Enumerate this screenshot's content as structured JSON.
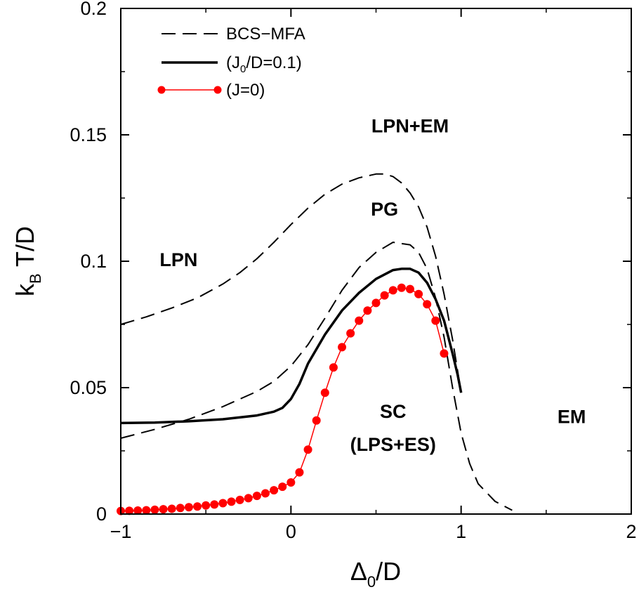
{
  "chart_data": {
    "type": "line",
    "title": "",
    "xlabel": "Δ0/D",
    "ylabel": "kB T/D",
    "xlim": [
      -1,
      2
    ],
    "ylim": [
      0,
      0.2
    ],
    "x_ticks": [
      -1,
      0,
      1,
      2
    ],
    "x_tick_labels": [
      "−1",
      "0",
      "1",
      "2"
    ],
    "y_ticks": [
      0,
      0.05,
      0.1,
      0.15,
      0.2
    ],
    "y_tick_labels": [
      "0",
      "0.05",
      "0.1",
      "0.15",
      "0.2"
    ],
    "grid": false,
    "legend_position": "top-left",
    "legend": [
      "BCS−MFA",
      "(J0/D=0.1)",
      "(J=0)"
    ],
    "series": [
      {
        "name": "BCS−MFA",
        "style": "dashed",
        "color": "#000000",
        "points": [
          [
            -1.0,
            0.075
          ],
          [
            -0.85,
            0.078
          ],
          [
            -0.7,
            0.0815
          ],
          [
            -0.55,
            0.0855
          ],
          [
            -0.4,
            0.091
          ],
          [
            -0.3,
            0.0955
          ],
          [
            -0.2,
            0.101
          ],
          [
            -0.1,
            0.1075
          ],
          [
            0.0,
            0.1145
          ],
          [
            0.1,
            0.121
          ],
          [
            0.2,
            0.1265
          ],
          [
            0.3,
            0.1305
          ],
          [
            0.4,
            0.133
          ],
          [
            0.5,
            0.1345
          ],
          [
            0.55,
            0.1345
          ],
          [
            0.6,
            0.1335
          ],
          [
            0.65,
            0.131
          ],
          [
            0.7,
            0.127
          ],
          [
            0.75,
            0.1215
          ],
          [
            0.8,
            0.1135
          ],
          [
            0.85,
            0.102
          ],
          [
            0.9,
            0.087
          ],
          [
            0.95,
            0.069
          ],
          [
            1.0,
            0.048
          ]
        ]
      },
      {
        "name": "",
        "style": "dashed",
        "color": "#000000",
        "points": [
          [
            -1.0,
            0.03
          ],
          [
            -0.8,
            0.0335
          ],
          [
            -0.6,
            0.0375
          ],
          [
            -0.4,
            0.0425
          ],
          [
            -0.2,
            0.0485
          ],
          [
            -0.1,
            0.0525
          ],
          [
            0.0,
            0.0585
          ],
          [
            0.1,
            0.067
          ],
          [
            0.2,
            0.0775
          ],
          [
            0.3,
            0.0885
          ],
          [
            0.4,
            0.0975
          ],
          [
            0.5,
            0.1035
          ],
          [
            0.6,
            0.1075
          ],
          [
            0.7,
            0.1065
          ],
          [
            0.75,
            0.1035
          ],
          [
            0.8,
            0.097
          ],
          [
            0.85,
            0.0855
          ],
          [
            0.9,
            0.07
          ],
          [
            0.95,
            0.05
          ],
          [
            1.0,
            0.032
          ],
          [
            1.05,
            0.02
          ],
          [
            1.1,
            0.012
          ],
          [
            1.2,
            0.005
          ],
          [
            1.3,
            0.0015
          ]
        ]
      },
      {
        "name": "(J0/D=0.1)",
        "style": "solid",
        "color": "#000000",
        "points": [
          [
            -1.0,
            0.036
          ],
          [
            -0.8,
            0.0362
          ],
          [
            -0.6,
            0.0367
          ],
          [
            -0.4,
            0.0375
          ],
          [
            -0.2,
            0.039
          ],
          [
            -0.1,
            0.0405
          ],
          [
            -0.05,
            0.042
          ],
          [
            0.0,
            0.0455
          ],
          [
            0.05,
            0.0515
          ],
          [
            0.1,
            0.0595
          ],
          [
            0.2,
            0.071
          ],
          [
            0.3,
            0.0805
          ],
          [
            0.4,
            0.0875
          ],
          [
            0.5,
            0.093
          ],
          [
            0.6,
            0.0965
          ],
          [
            0.65,
            0.097
          ],
          [
            0.7,
            0.097
          ],
          [
            0.75,
            0.0955
          ],
          [
            0.8,
            0.0915
          ],
          [
            0.85,
            0.085
          ],
          [
            0.9,
            0.0765
          ],
          [
            0.95,
            0.0635
          ],
          [
            0.98,
            0.055
          ],
          [
            1.0,
            0.048
          ]
        ]
      },
      {
        "name": "(J=0)",
        "style": "line-markers",
        "color": "#ff0000",
        "points": [
          [
            -1.0,
            0.0012
          ],
          [
            -0.95,
            0.0013
          ],
          [
            -0.9,
            0.0014
          ],
          [
            -0.85,
            0.0015
          ],
          [
            -0.8,
            0.0017
          ],
          [
            -0.75,
            0.0019
          ],
          [
            -0.7,
            0.0021
          ],
          [
            -0.65,
            0.0024
          ],
          [
            -0.6,
            0.0027
          ],
          [
            -0.55,
            0.003
          ],
          [
            -0.5,
            0.0034
          ],
          [
            -0.45,
            0.0038
          ],
          [
            -0.4,
            0.0043
          ],
          [
            -0.35,
            0.0049
          ],
          [
            -0.3,
            0.0056
          ],
          [
            -0.25,
            0.0063
          ],
          [
            -0.2,
            0.0072
          ],
          [
            -0.15,
            0.0082
          ],
          [
            -0.1,
            0.0094
          ],
          [
            -0.05,
            0.0108
          ],
          [
            0.0,
            0.0125
          ],
          [
            0.05,
            0.0165
          ],
          [
            0.1,
            0.0255
          ],
          [
            0.15,
            0.037
          ],
          [
            0.2,
            0.048
          ],
          [
            0.25,
            0.058
          ],
          [
            0.3,
            0.066
          ],
          [
            0.35,
            0.0715
          ],
          [
            0.4,
            0.0765
          ],
          [
            0.45,
            0.0805
          ],
          [
            0.5,
            0.0835
          ],
          [
            0.55,
            0.0865
          ],
          [
            0.6,
            0.0885
          ],
          [
            0.65,
            0.0895
          ],
          [
            0.7,
            0.089
          ],
          [
            0.75,
            0.087
          ],
          [
            0.8,
            0.083
          ],
          [
            0.85,
            0.0765
          ],
          [
            0.9,
            0.0635
          ]
        ]
      }
    ],
    "annotations": [
      {
        "text": "LPN+EM",
        "x": 0.7,
        "y": 0.151
      },
      {
        "text": "PG",
        "x": 0.55,
        "y": 0.118
      },
      {
        "text": "LPN",
        "x": -0.66,
        "y": 0.098
      },
      {
        "text": "SC",
        "x": 0.6,
        "y": 0.038
      },
      {
        "text": "(LPS+ES)",
        "x": 0.6,
        "y": 0.025
      },
      {
        "text": "EM",
        "x": 1.65,
        "y": 0.036
      }
    ]
  },
  "axis_titles": {
    "x_main": "Δ",
    "x_sub": "0",
    "x_rest": "/D",
    "y_main": "k",
    "y_sub": "B",
    "y_rest": " T/D"
  },
  "legend_items": [
    {
      "main": "BCS−MFA",
      "sub": "",
      "rest": ""
    },
    {
      "main": "(J",
      "sub": "0",
      "rest": "/D=0.1)"
    },
    {
      "main": "(J=0)",
      "sub": "",
      "rest": ""
    }
  ]
}
